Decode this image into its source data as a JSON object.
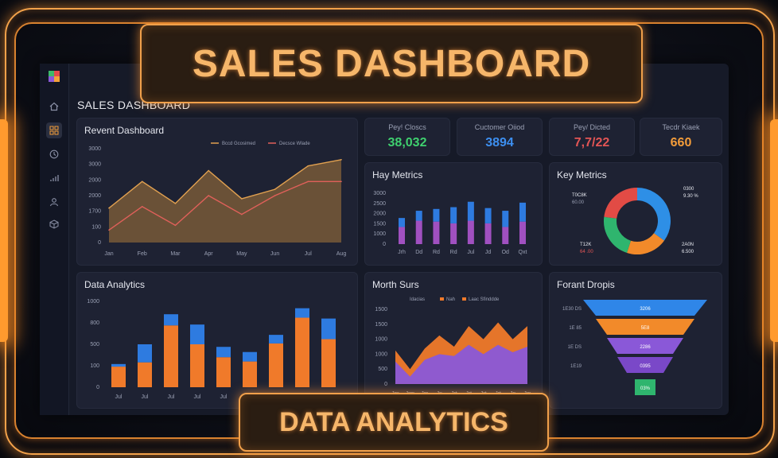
{
  "banner": {
    "top": "SALES DASHBOARD",
    "bottom": "DATA ANALYTICS"
  },
  "app": {
    "title": "SALES DASHBOARD"
  },
  "sidebar": {
    "icons": [
      "home-icon",
      "grid-icon",
      "clock-icon",
      "signal-icon",
      "user-icon",
      "box-icon"
    ],
    "active": "grid-icon"
  },
  "kpis": [
    {
      "label": "Pey! Closcs",
      "value": "38,032",
      "color": "#3fd06f"
    },
    {
      "label": "Cuctomer Oiiod",
      "value": "3894",
      "color": "#3d8ff0"
    },
    {
      "label": "Pey/ Dicted",
      "value": "7,7/22",
      "color": "#e25555"
    },
    {
      "label": "Tecdr Kiaek",
      "value": "660",
      "color": "#f39c3a"
    }
  ],
  "revent": {
    "title": "Revent Dashboard",
    "legend": [
      "Bccd Gcosimed",
      "Decsce Wlade"
    ],
    "y_ticks": [
      "3000",
      "3000",
      "2000",
      "2000",
      "1700",
      "100",
      "0"
    ],
    "x_ticks": [
      "Jan",
      "Feb",
      "Mar",
      "Apr",
      "May",
      "Jun",
      "Jul",
      "Aug"
    ]
  },
  "hay": {
    "title": "Hay Metrics",
    "y_ticks": [
      "3000",
      "2500",
      "2000",
      "1500",
      "1000",
      "0"
    ],
    "x_ticks": [
      "Jrh",
      "Dd",
      "Rd",
      "Rd",
      "Jul",
      "Jd",
      "Od",
      "Qxt"
    ]
  },
  "key": {
    "title": "Key Metrics",
    "labels": [
      {
        "main": "T0C8K",
        "sub": "60.00"
      },
      {
        "main": "0300",
        "sub": "9.30 %"
      },
      {
        "main": "T12K",
        "sub": "64 .00"
      },
      {
        "main": "2A0N",
        "sub": "6.500"
      }
    ]
  },
  "data_analytics": {
    "title": "Data Analytics",
    "y_ticks": [
      "1000",
      "800",
      "500",
      "100",
      "0"
    ],
    "x_ticks": [
      "Jul",
      "Jul",
      "Jul",
      "Jul",
      "Jul",
      "Jul",
      "Jul",
      "Jul",
      "Jul"
    ]
  },
  "morth": {
    "title": "Morth Surs",
    "legend": [
      "Idacias",
      "Nah",
      "Laac Sfinddde"
    ],
    "y_ticks": [
      "1500",
      "1500",
      "1000",
      "1000",
      "500",
      "0"
    ],
    "x_ticks": [
      "Jrn",
      "Jrm",
      "Jm",
      "Jn",
      "Jrt",
      "Jrt",
      "Jrt",
      "Jrt",
      "Jn",
      "Jm"
    ]
  },
  "funnel": {
    "title": "Forant Dropis",
    "rows": [
      {
        "label": "1E30 DS",
        "value": "3206",
        "color": "#2f86e8"
      },
      {
        "label": "1E 85",
        "value": "5E8",
        "color": "#f28a2a"
      },
      {
        "label": "1E DS",
        "value": "2286",
        "color": "#8a58d8"
      },
      {
        "label": "1E19",
        "value": "0395",
        "color": "#7a48c8"
      },
      {
        "label": "",
        "value": "03%",
        "color": "#2fb56e"
      }
    ]
  },
  "chart_data": [
    {
      "type": "area",
      "title": "Revent Dashboard",
      "categories": [
        "Jan",
        "Feb",
        "Mar",
        "Apr",
        "May",
        "Jun",
        "Jul",
        "Aug"
      ],
      "series": [
        {
          "name": "Bccd Gcosimed",
          "values": [
            1100,
            1950,
            1250,
            2300,
            1400,
            1700,
            2450,
            2650
          ],
          "color": "#e0a050"
        },
        {
          "name": "Decsce Wlade",
          "values": [
            400,
            1150,
            550,
            1500,
            900,
            1500,
            1950,
            1950
          ],
          "color": "#e0605a"
        }
      ],
      "ylim": [
        0,
        3000
      ]
    },
    {
      "type": "bar",
      "title": "Hay Metrics",
      "categories": [
        "Jrh",
        "Dd",
        "Rd",
        "Rd",
        "Jul",
        "Jd",
        "Od",
        "Qxt"
      ],
      "series": [
        {
          "values": [
            950,
            1300,
            1250,
            1150,
            1300,
            1150,
            950,
            1250
          ],
          "color": "#a050c0"
        },
        {
          "values": [
            500,
            550,
            700,
            900,
            1050,
            850,
            900,
            1050
          ],
          "color": "#2e7be0"
        }
      ],
      "ylim": [
        0,
        3000
      ]
    },
    {
      "type": "pie",
      "title": "Key Metrics",
      "values": [
        35,
        20,
        22,
        23
      ],
      "colors": [
        "#2e8fe6",
        "#f28a2a",
        "#2fb56e",
        "#e24b45"
      ]
    },
    {
      "type": "bar",
      "title": "Data Analytics",
      "categories": [
        "Jul",
        "Jul",
        "Jul",
        "Jul",
        "Jul",
        "Jul",
        "Jul",
        "Jul",
        "Jul"
      ],
      "series": [
        {
          "values": [
            240,
            290,
            720,
            500,
            350,
            300,
            510,
            810,
            560
          ],
          "color": "#f07a2a"
        },
        {
          "values": [
            30,
            210,
            130,
            230,
            120,
            110,
            100,
            110,
            240
          ],
          "color": "#2e7be0"
        }
      ],
      "ylim": [
        0,
        1000
      ]
    },
    {
      "type": "area",
      "title": "Morth Surs",
      "categories": [
        "Jrn",
        "Jrm",
        "Jm",
        "Jn",
        "Jrt",
        "Jrt",
        "Jrt",
        "Jrt",
        "Jn",
        "Jm"
      ],
      "series": [
        {
          "name": "Idacias",
          "values": [
            900,
            400,
            950,
            1300,
            1000,
            1550,
            1200,
            1650,
            1200,
            1550
          ],
          "color": "#f07a2a"
        },
        {
          "name": "Nah",
          "values": [
            600,
            200,
            650,
            800,
            750,
            1050,
            800,
            1050,
            850,
            1000
          ],
          "color": "#8a58d8"
        }
      ],
      "ylim": [
        0,
        2000
      ]
    }
  ]
}
